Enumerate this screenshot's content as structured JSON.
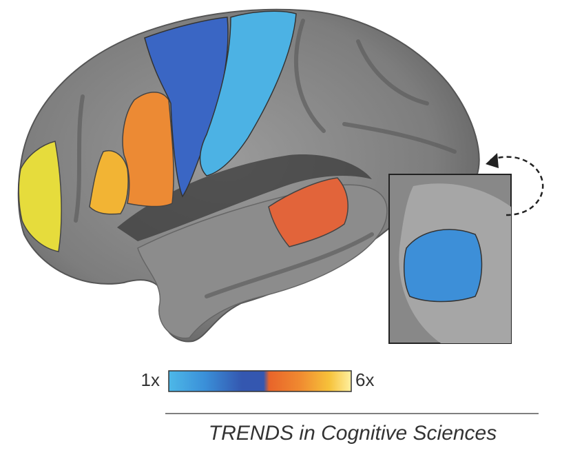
{
  "colorbar": {
    "min_label": "1x",
    "max_label": "6x"
  },
  "footer": {
    "source": "TRENDS in Cognitive Sciences"
  }
}
